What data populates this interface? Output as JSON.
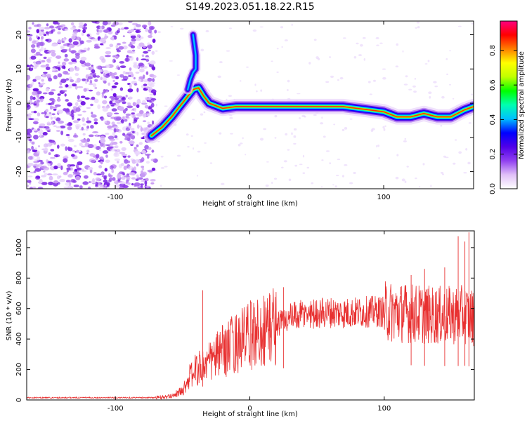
{
  "title": "S149.2023.051.18.22.R15",
  "chart_data": [
    {
      "type": "heatmap",
      "xlabel": "Height of straight line (km)",
      "ylabel": "Frequency (Hz)",
      "xlim": [
        -166,
        167
      ],
      "ylim": [
        -25,
        24
      ],
      "xticks": [
        -100,
        0,
        100
      ],
      "xtick_labels": [
        "-100",
        "0",
        "100"
      ],
      "yticks": [
        -20,
        -10,
        0,
        10,
        20
      ],
      "ytick_labels": [
        "-20",
        "-10",
        "0",
        "10",
        "20"
      ],
      "grid": false,
      "colorbar": {
        "label": "Normalized spectral amplitude",
        "range": [
          0,
          0.97
        ],
        "ticks": [
          0.0,
          0.2,
          0.4,
          0.6,
          0.8
        ],
        "tick_labels": [
          "0.0",
          "0.2",
          "0.4",
          "0.6",
          "0.8"
        ],
        "colormap": [
          "#ffffff",
          "#e0c0f8",
          "#9040f0",
          "#5000e8",
          "#0000ff",
          "#00c0ff",
          "#00ffb0",
          "#00ff00",
          "#c0ff00",
          "#ffff00",
          "#ff8000",
          "#ff0000",
          "#ff0080"
        ]
      },
      "ridge": [
        {
          "x": -73,
          "y": -9.5
        },
        {
          "x": -65,
          "y": -7
        },
        {
          "x": -58,
          "y": -4
        },
        {
          "x": -52,
          "y": -1
        },
        {
          "x": -46,
          "y": 2
        },
        {
          "x": -42,
          "y": 4
        },
        {
          "x": -38,
          "y": 4.5
        },
        {
          "x": -34,
          "y": 2
        },
        {
          "x": -30,
          "y": 0
        },
        {
          "x": -20,
          "y": -1.5
        },
        {
          "x": -10,
          "y": -1
        },
        {
          "x": 0,
          "y": -1
        },
        {
          "x": 10,
          "y": -1
        },
        {
          "x": 20,
          "y": -1
        },
        {
          "x": 30,
          "y": -1
        },
        {
          "x": 40,
          "y": -1
        },
        {
          "x": 50,
          "y": -1
        },
        {
          "x": 60,
          "y": -1
        },
        {
          "x": 70,
          "y": -1
        },
        {
          "x": 80,
          "y": -1.5
        },
        {
          "x": 90,
          "y": -2
        },
        {
          "x": 100,
          "y": -2.5
        },
        {
          "x": 110,
          "y": -4
        },
        {
          "x": 120,
          "y": -4
        },
        {
          "x": 130,
          "y": -3
        },
        {
          "x": 140,
          "y": -4
        },
        {
          "x": 150,
          "y": -4
        },
        {
          "x": 160,
          "y": -2
        },
        {
          "x": 167,
          "y": -1
        }
      ],
      "branch": [
        {
          "x": -46,
          "y": 4
        },
        {
          "x": -44,
          "y": 7
        },
        {
          "x": -42,
          "y": 9
        },
        {
          "x": -40,
          "y": 10
        },
        {
          "x": -40,
          "y": 14
        },
        {
          "x": -41,
          "y": 17
        },
        {
          "x": -42,
          "y": 20
        }
      ],
      "noise_region": {
        "x_from": -166,
        "x_to": -70
      }
    },
    {
      "type": "line",
      "xlabel": "Height of straight line (km)",
      "ylabel": "SNR (10 * v/v)",
      "xlim": [
        -166,
        167
      ],
      "ylim": [
        0,
        1110
      ],
      "xticks": [
        -100,
        0,
        100
      ],
      "xtick_labels": [
        "-100",
        "0",
        "100"
      ],
      "yticks": [
        0,
        200,
        400,
        600,
        800,
        1000
      ],
      "ytick_labels": [
        "0",
        "200",
        "400",
        "600",
        "800",
        "1000"
      ],
      "grid": false,
      "series": [
        {
          "color": "#e83030",
          "envelope": [
            {
              "x": -166,
              "y": 15
            },
            {
              "x": -70,
              "y": 15
            },
            {
              "x": -60,
              "y": 20
            },
            {
              "x": -50,
              "y": 60
            },
            {
              "x": -45,
              "y": 150
            },
            {
              "x": -40,
              "y": 200
            },
            {
              "x": -35,
              "y": 220
            },
            {
              "x": -30,
              "y": 250
            },
            {
              "x": -25,
              "y": 290
            },
            {
              "x": -20,
              "y": 320
            },
            {
              "x": -10,
              "y": 380
            },
            {
              "x": 0,
              "y": 420
            },
            {
              "x": 10,
              "y": 460
            },
            {
              "x": 20,
              "y": 500
            },
            {
              "x": 30,
              "y": 540
            },
            {
              "x": 40,
              "y": 560
            },
            {
              "x": 50,
              "y": 570
            },
            {
              "x": 60,
              "y": 575
            },
            {
              "x": 70,
              "y": 570
            },
            {
              "x": 80,
              "y": 575
            },
            {
              "x": 90,
              "y": 580
            },
            {
              "x": 100,
              "y": 580
            },
            {
              "x": 110,
              "y": 575
            },
            {
              "x": 120,
              "y": 570
            },
            {
              "x": 130,
              "y": 560
            },
            {
              "x": 140,
              "y": 555
            },
            {
              "x": 150,
              "y": 555
            },
            {
              "x": 160,
              "y": 560
            },
            {
              "x": 167,
              "y": 540
            }
          ],
          "peaks": [
            {
              "x": -35,
              "y": 720
            },
            {
              "x": 25,
              "y": 740
            },
            {
              "x": 155,
              "y": 1075
            },
            {
              "x": 160,
              "y": 1040
            },
            {
              "x": 163,
              "y": 1100
            },
            {
              "x": 145,
              "y": 870
            },
            {
              "x": 120,
              "y": 820
            },
            {
              "x": 130,
              "y": 860
            }
          ]
        }
      ]
    }
  ]
}
